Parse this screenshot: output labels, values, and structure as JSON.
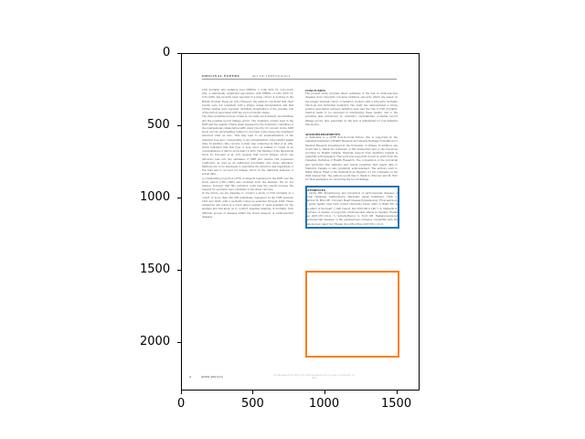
{
  "axes": {
    "x_ticks": [
      "0",
      "500",
      "1000",
      "1500"
    ],
    "y_ticks": [
      "0",
      "500",
      "1000",
      "1500",
      "2000"
    ]
  },
  "document": {
    "running_head": "ORIGINAL PAPERS",
    "doi": "doi:10.1093/rpd/ncs",
    "left_column": [
      "CVD mortality and radiation dose (ERR/Sv = 0.09; 95% CI: -0.01–0.20) [22]. A statistically significant association, with ERR/Sv of 0.65 (95% CI: 0.35–0.98), has recently been reported in a large cohort of workers in the British Nuclear Fuels plc [23]. However, the authors concluded that their results were not consistent with a simple causal interpretation and that further studies were required, including investigation of the possible role of the factors associated with the socio-economic status.",
      "The other potential sources of bias in our study are dosimetry uncertainties and the possible record linkage errors. The dosimetry system used in the NDR met the quality criteria when assessed by the dosimetry committee of the international collaborative IARC study [24–25]. Of concern in the NDR study are the uncertainties related to recorded doses below the dosimeter detection limit as zero. This may lead to an underestimation of the radiation dose and, consequently, to an overestimation of the related health risks. In addition, this concern, a study was conducted by Shet et al. [26], which indicated that this type of dose error is unlikely to result in an overestimation of risk by more than 15–20%. The findings of the theoretical study by Kurosaki et al. [27] suggest that record linkage errors can introduce bias into the estimates of SMR and relative risk regression coefficient, as well as an additional uncertainty into these estimates. Methods are to be developed to determine the direction and magnitude of this bias and to account for linkage errors in the statistical analyses of actual data.",
      "A considerable proportion (25%) of subjects registered in the NDR over the study period (1951–1995) was excluded from the analysis. We do not believe, however, that this exclusion could bias the results because the reasons for exclusion were unrelated to the study outcome.",
      "In the future, we are planning to conduct a study of CVD mortality in a cohort of more than 350 000 individuals registered in the NDR between 1951 and 2005, with a mortality follow-up extended through 2005. These extensions will result in a much larger number of cases available for the analysis and will allow us to conduct separate analyses of mortality from different groups of diseases within the broad category of cardiovascular diseases."
    ],
    "conclusion_title": "CONCLUSION",
    "conclusion_text": "The present study provides direct estimates of the risk of cardiovascular diseases from long-term low-level radiation exposure which are based on the largest national cohort of radiation workers with a long-term mortality follow-up and individual dosimetry. The study has demonstrated a strong positive association between radiation dose and the risk of CVD mortality. Caution needs to be exercised in interpreting these results, due to the potential bias introduced by dosimetry uncertainties, potential record linkage errors, and, especially, by the lack of adjustment for non-radiation risk factors.",
    "acknowledgements_title": "ACKNOWLEDGEMENTS",
    "acknowledgements_text": "A. Zablotska is a CIHR Post-Doctoral Fellow. She is supported by the Canadian Institutes of Health Research and Alberta Heritage Foundation for Medical Research Investment at the University of Ottawa. In addition, she would like to thank the reviewers of this manuscript and to the resources provided by Health Canada; financial support from Statistics Canada is gratefully acknowledged. This work was supported in part by grant from the Canadian Institutes of Health Research. The cooperation of the provincial and territorial vital statistics and cancer registries that supply data to Statistics Canada is also gratefully acknowledged. The authors wish to thank Wilson, Head of the National Dose Registry, for his comments on the draft manuscript. The authors would like to thank D. Zincover and M. Farr for their assistance in conducting the record linkage.",
    "references_title": "REFERENCES",
    "references_text": "1. Cardis HM. Epidemiology and prevention of cardiovascular diseases. A global challenge. Gaithersburg, Maryland: Aspen Publishers, 1998. 2. Marmot M, Elliot PE. Coronary Heart Disease Epidemiology: From aetiology to public health. New York: Oxford University Press, 2005. 3. Bhatt RN. Is the affect of the heart. J Natl Cancer Inst 2007;99(1):196–7. 4. Mettadin K. Overview of studies of long-term cardiovascular effects in humans. Radiat Res 2007;167:116–9. 5. Schultz-Hector S, Trott KR. Radiation-induced cardiovascular diseases: is the epidemiologic evidence compatible with the radiobiologic data? Int J Radiat Oncol Biol Phys 2007;67(1):10–8.",
    "footer_page": "4",
    "footer_num": "ANNX 2007(21)",
    "footer_center": "Downloaded from http://rpd.oxfordjournals.org/ by guest on February 12, 2013"
  }
}
